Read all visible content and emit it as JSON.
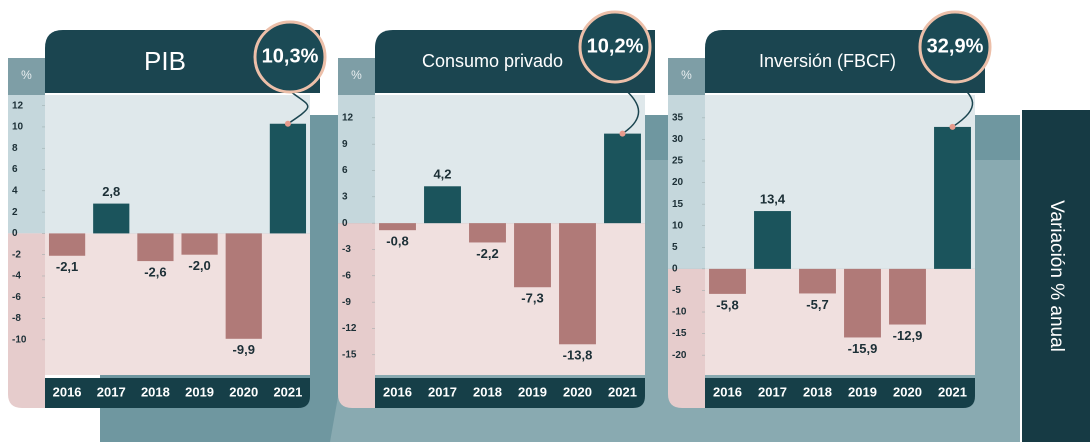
{
  "chart_data": [
    {
      "type": "bar",
      "title": "PIB",
      "unit": "%",
      "categories": [
        "2016",
        "2017",
        "2018",
        "2019",
        "2020",
        "2021"
      ],
      "values": [
        -2.1,
        2.8,
        -2.6,
        -2.0,
        -9.9,
        10.3
      ],
      "value_labels": [
        "-2,1",
        "2,8",
        "-2,6",
        "-2,0",
        "-9,9",
        "10,3%"
      ],
      "ylim": [
        -13.3,
        13
      ],
      "yticks": [
        12,
        10,
        8,
        6,
        4,
        2,
        0,
        -2,
        -4,
        -6,
        -8,
        -10
      ],
      "positive_color": "#1b545c",
      "negative_color": "#b07a78"
    },
    {
      "type": "bar",
      "title": "Consumo privado",
      "unit": "%",
      "categories": [
        "2016",
        "2017",
        "2018",
        "2019",
        "2020",
        "2021"
      ],
      "values": [
        -0.8,
        4.2,
        -2.2,
        -7.3,
        -13.8,
        10.2
      ],
      "value_labels": [
        "-0,8",
        "4,2",
        "-2,2",
        "-7,3",
        "-13,8",
        "10,2%"
      ],
      "ylim": [
        -17.3,
        14.6
      ],
      "yticks": [
        12,
        9,
        6,
        3,
        0,
        -3,
        -6,
        -9,
        -12,
        -15
      ],
      "positive_color": "#1b545c",
      "negative_color": "#b07a78"
    },
    {
      "type": "bar",
      "title": "Inversión (FBCF)",
      "unit": "%",
      "categories": [
        "2016",
        "2017",
        "2018",
        "2019",
        "2020",
        "2021"
      ],
      "values": [
        -5.8,
        13.4,
        -5.7,
        -15.9,
        -12.9,
        32.9
      ],
      "value_labels": [
        "-5,8",
        "13,4",
        "-5,7",
        "-15,9",
        "-12,9",
        "32,9%"
      ],
      "ylim": [
        -24.6,
        40.3
      ],
      "yticks": [
        35,
        30,
        25,
        20,
        15,
        10,
        5,
        0,
        -5,
        -10,
        -15,
        -20
      ],
      "positive_color": "#1b545c",
      "negative_color": "#b07a78"
    }
  ],
  "side_label": "Variación % anual"
}
